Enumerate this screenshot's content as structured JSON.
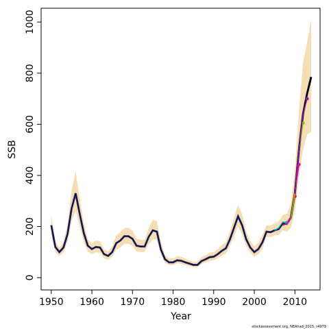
{
  "chart_data": {
    "type": "line",
    "xlabel": "Year",
    "ylabel": "SSB",
    "footnote": "stockassessment.org, NEAhad_2015, r4979",
    "xlim": [
      1947.5,
      2016.2
    ],
    "ylim": [
      -48,
      1054
    ],
    "xticks": [
      1950,
      1960,
      1970,
      1980,
      1990,
      2000,
      2010
    ],
    "yticks": [
      0,
      200,
      400,
      600,
      800,
      1000
    ],
    "x": [
      1950,
      1951,
      1952,
      1953,
      1954,
      1955,
      1956,
      1957,
      1958,
      1959,
      1960,
      1961,
      1962,
      1963,
      1964,
      1965,
      1966,
      1967,
      1968,
      1969,
      1970,
      1971,
      1972,
      1973,
      1974,
      1975,
      1976,
      1977,
      1978,
      1979,
      1980,
      1981,
      1982,
      1983,
      1984,
      1985,
      1986,
      1987,
      1988,
      1989,
      1990,
      1991,
      1992,
      1993,
      1994,
      1995,
      1996,
      1997,
      1998,
      1999,
      2000,
      2001,
      2002,
      2003,
      2004,
      2005,
      2006,
      2007,
      2008,
      2009,
      2010,
      2011,
      2012,
      2013,
      2014
    ],
    "band": {
      "color": "#f5deb3",
      "upper": [
        245,
        140,
        118,
        140,
        210,
        340,
        415,
        310,
        215,
        150,
        135,
        145,
        142,
        112,
        103,
        122,
        165,
        178,
        195,
        195,
        185,
        152,
        148,
        148,
        195,
        225,
        222,
        138,
        90,
        75,
        75,
        84,
        82,
        75,
        68,
        62,
        62,
        80,
        88,
        98,
        100,
        112,
        128,
        140,
        182,
        235,
        285,
        248,
        182,
        143,
        122,
        136,
        168,
        205,
        205,
        212,
        220,
        245,
        250,
        290,
        420,
        650,
        840,
        920,
        1010
      ],
      "lower": [
        170,
        100,
        84,
        98,
        140,
        220,
        260,
        200,
        140,
        102,
        92,
        99,
        97,
        75,
        70,
        82,
        110,
        118,
        133,
        133,
        124,
        102,
        100,
        100,
        130,
        150,
        148,
        90,
        58,
        49,
        49,
        56,
        54,
        49,
        45,
        41,
        41,
        53,
        59,
        66,
        68,
        76,
        86,
        94,
        124,
        160,
        200,
        168,
        124,
        97,
        82,
        92,
        112,
        160,
        158,
        165,
        168,
        185,
        180,
        195,
        260,
        400,
        500,
        560,
        570
      ]
    },
    "series": [
      {
        "color": "#000000",
        "values": [
          205,
          120,
          100,
          118,
          170,
          270,
          330,
          250,
          175,
          125,
          112,
          120,
          118,
          92,
          85,
          100,
          135,
          145,
          162,
          162,
          152,
          125,
          122,
          122,
          160,
          185,
          180,
          110,
          72,
          60,
          60,
          68,
          66,
          60,
          55,
          50,
          50,
          65,
          72,
          80,
          82,
          92,
          105,
          115,
          150,
          195,
          240,
          205,
          150,
          118,
          100,
          112,
          138,
          180,
          178,
          185,
          190,
          212,
          210,
          235,
          330,
          500,
          640,
          720,
          785
        ]
      }
    ],
    "retro": [
      {
        "color": "#00bcd4",
        "x": [
          2005,
          2006,
          2007,
          2008
        ],
        "values": [
          185,
          195,
          218,
          215
        ]
      },
      {
        "color": "#ff0040",
        "x": [
          2007,
          2008,
          2009,
          2010
        ],
        "values": [
          205,
          212,
          235,
          318
        ]
      },
      {
        "color": "#ff00aa",
        "x": [
          2008,
          2009,
          2010,
          2011
        ],
        "values": [
          212,
          232,
          330,
          443
        ]
      },
      {
        "color": "#7fd000",
        "x": [
          2009,
          2010,
          2011,
          2012
        ],
        "values": [
          234,
          330,
          500,
          605
        ]
      },
      {
        "color": "#8a1aa8",
        "x": [
          2010,
          2011,
          2012,
          2013
        ],
        "values": [
          330,
          500,
          640,
          700
        ]
      }
    ]
  }
}
